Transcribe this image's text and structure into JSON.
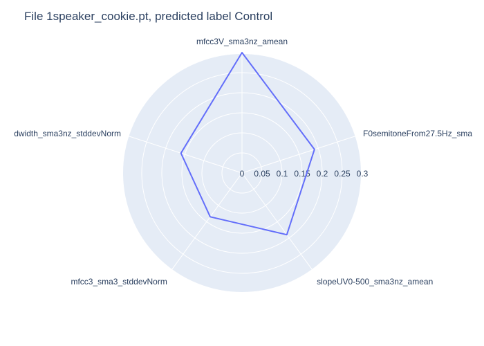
{
  "chart_data": {
    "type": "radar",
    "title": "File 1speaker_cookie.pt, predicted label Control",
    "axes": [
      "mfcc3V_sma3nz_amean",
      "F0semitoneFrom27.5Hz_sma",
      "slopeUV0-500_sma3nz_amean",
      "mfcc3_sma3_stddevNorm",
      "dwidth_sma3nz_stddevNorm"
    ],
    "values": [
      0.3,
      0.19,
      0.19,
      0.135,
      0.16
    ],
    "radial_range": [
      0,
      0.3
    ],
    "radial_ticks": [
      "0",
      "0.05",
      "0.1",
      "0.15",
      "0.2",
      "0.25",
      "0.3"
    ],
    "grid": true,
    "colors": {
      "plot_background": "#e5ecf6",
      "grid": "#ffffff",
      "line": "#636efa",
      "text": "#2a3f5f"
    }
  }
}
